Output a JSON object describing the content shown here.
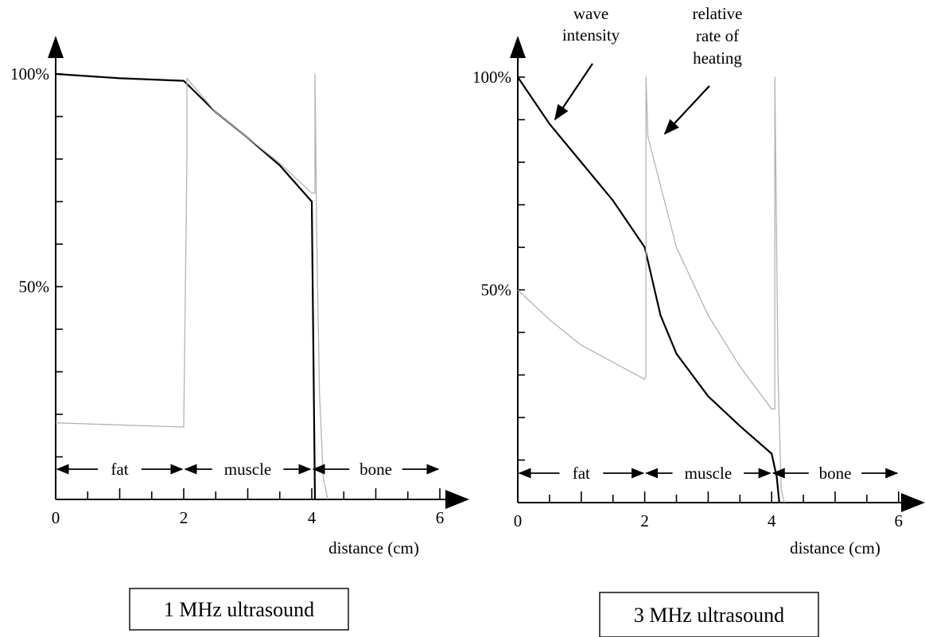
{
  "chart_data": [
    {
      "type": "line",
      "title": "1 MHz ultrasound",
      "xlabel": "distance (cm)",
      "ylabel": "",
      "xlim": [
        0,
        6.2
      ],
      "ylim": [
        0,
        1.12
      ],
      "x_ticks": [
        "0",
        "2",
        "4",
        "6"
      ],
      "y_tick_labels": [
        "50%",
        "100%"
      ],
      "regions": [
        {
          "label": "fat",
          "from": 0,
          "to": 2
        },
        {
          "label": "muscle",
          "from": 2,
          "to": 4
        },
        {
          "label": "bone",
          "from": 4,
          "to": 6
        }
      ],
      "annotations": [],
      "series": [
        {
          "points": [
            [
              0,
              1.0
            ],
            [
              1,
              0.99
            ],
            [
              2,
              0.984
            ],
            [
              2.5,
              0.91
            ],
            [
              3,
              0.85
            ],
            [
              3.5,
              0.785
            ],
            [
              4,
              0.7
            ],
            [
              4.05,
              0.0
            ]
          ]
        },
        {
          "points": [
            [
              0,
              0.18
            ],
            [
              2,
              0.17
            ],
            [
              2.05,
              0.8
            ],
            [
              2.05,
              0.99
            ],
            [
              2.5,
              0.91
            ],
            [
              3,
              0.85
            ],
            [
              3.5,
              0.79
            ],
            [
              4,
              0.72
            ],
            [
              4.05,
              0.72
            ],
            [
              4.05,
              1.0
            ],
            [
              4.08,
              0.6
            ],
            [
              4.12,
              0.25
            ],
            [
              4.18,
              0.05
            ],
            [
              4.25,
              0.0
            ]
          ]
        }
      ]
    },
    {
      "type": "line",
      "title": "3 MHz ultrasound",
      "xlabel": "distance (cm)",
      "ylabel": "",
      "xlim": [
        0,
        6.2
      ],
      "ylim": [
        0,
        1.12
      ],
      "x_ticks": [
        "0",
        "2",
        "4",
        "6"
      ],
      "y_tick_labels": [
        "50%",
        "100%"
      ],
      "regions": [
        {
          "label": "fat",
          "from": 0,
          "to": 2
        },
        {
          "label": "muscle",
          "from": 2,
          "to": 4
        },
        {
          "label": "bone",
          "from": 4,
          "to": 6
        }
      ],
      "annotations": [
        {
          "lines": [
            "wave",
            "intensity"
          ]
        },
        {
          "lines": [
            "relative",
            "rate of",
            "heating"
          ]
        }
      ],
      "series": [
        {
          "points": [
            [
              0,
              1.0
            ],
            [
              0.5,
              0.89
            ],
            [
              1,
              0.8
            ],
            [
              1.5,
              0.71
            ],
            [
              2,
              0.6
            ],
            [
              2.25,
              0.44
            ],
            [
              2.5,
              0.35
            ],
            [
              3,
              0.25
            ],
            [
              3.5,
              0.18
            ],
            [
              4,
              0.115
            ],
            [
              4.08,
              0.06
            ],
            [
              4.12,
              0.0
            ]
          ]
        },
        {
          "points": [
            [
              0,
              0.5
            ],
            [
              0.5,
              0.43
            ],
            [
              1,
              0.37
            ],
            [
              1.5,
              0.33
            ],
            [
              2,
              0.29
            ],
            [
              2.02,
              0.3
            ],
            [
              2.02,
              1.0
            ],
            [
              2.05,
              0.86
            ],
            [
              2.5,
              0.6
            ],
            [
              3,
              0.44
            ],
            [
              3.5,
              0.32
            ],
            [
              4,
              0.22
            ],
            [
              4.05,
              0.22
            ],
            [
              4.05,
              1.0
            ],
            [
              4.1,
              0.3
            ],
            [
              4.15,
              0.03
            ],
            [
              4.2,
              0.0
            ]
          ]
        }
      ]
    }
  ]
}
